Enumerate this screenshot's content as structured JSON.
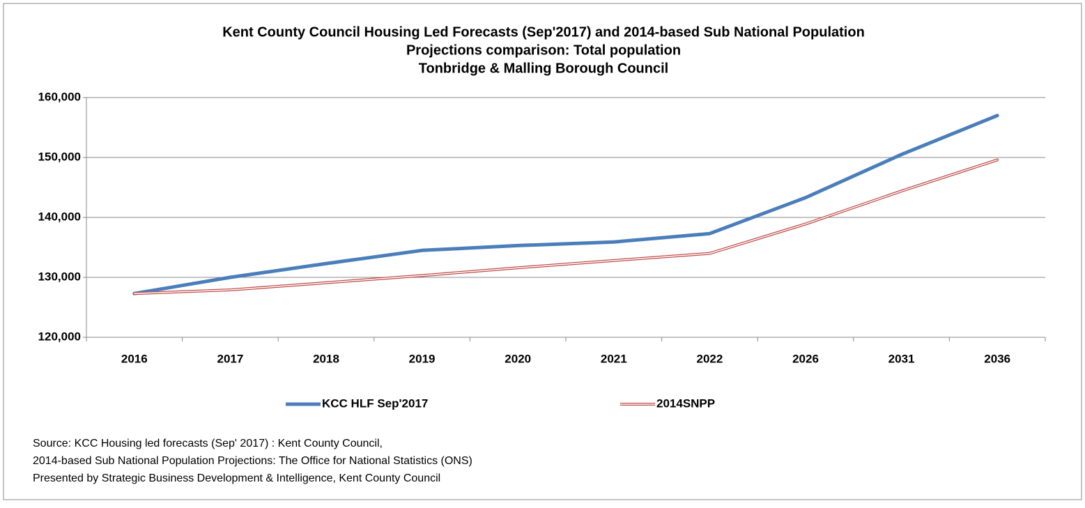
{
  "chart_data": {
    "type": "line",
    "title": [
      "Kent County Council Housing Led Forecasts (Sep'2017) and 2014-based Sub National Population",
      "Projections comparison: Total population",
      "Tonbridge & Malling Borough Council"
    ],
    "categories": [
      "2016",
      "2017",
      "2018",
      "2019",
      "2020",
      "2021",
      "2022",
      "2026",
      "2031",
      "2036"
    ],
    "series": [
      {
        "name": "KCC HLF Sep'2017",
        "color": "#4a7ebb",
        "values": [
          127300,
          130000,
          132300,
          134500,
          135300,
          135900,
          137300,
          143300,
          150500,
          157000
        ]
      },
      {
        "name": "2014SNPP",
        "color": "#be4b48",
        "values": [
          127300,
          127900,
          129100,
          130300,
          131600,
          132800,
          134000,
          138900,
          144400,
          149600
        ]
      }
    ],
    "ylim": [
      120000,
      160000
    ],
    "yticks": [
      {
        "value": 120000,
        "label": "120,000"
      },
      {
        "value": 130000,
        "label": "130,000"
      },
      {
        "value": 140000,
        "label": "140,000"
      },
      {
        "value": 150000,
        "label": "150,000"
      },
      {
        "value": 160000,
        "label": "160,000"
      }
    ],
    "grid": true,
    "legend": "bottom",
    "source": [
      "Source: KCC Housing led forecasts (Sep' 2017) : Kent County Council,",
      "2014-based Sub National Population Projections: The Office for National Statistics (ONS)",
      "Presented by Strategic Business Development & Intelligence, Kent County Council"
    ]
  }
}
